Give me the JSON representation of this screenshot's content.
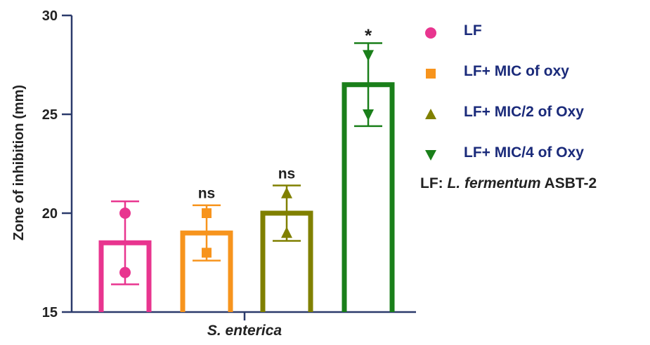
{
  "chart_data": {
    "type": "bar",
    "ylabel": "Zone of inhibition (mm)",
    "xlabel": "S. enterica",
    "ylim": [
      15,
      30
    ],
    "yticks": [
      15,
      20,
      25,
      30
    ],
    "series": [
      {
        "name": "LF",
        "color": "#e8358f",
        "marker": "circle",
        "mean": 18.5,
        "points": [
          20,
          17
        ],
        "error": [
          16.4,
          20.6
        ],
        "annotation": ""
      },
      {
        "name": "LF+ MIC of oxy",
        "color": "#f7941d",
        "marker": "square",
        "mean": 19.0,
        "points": [
          20,
          18
        ],
        "error": [
          17.6,
          20.4
        ],
        "annotation": "ns"
      },
      {
        "name": "LF+ MIC/2 of Oxy",
        "color": "#808000",
        "marker": "triangle-up",
        "mean": 20.0,
        "points": [
          21,
          19
        ],
        "error": [
          18.6,
          21.4
        ],
        "annotation": "ns"
      },
      {
        "name": "LF+ MIC/4 of Oxy",
        "color": "#1a7f1a",
        "marker": "triangle-down",
        "mean": 26.5,
        "points": [
          28,
          25
        ],
        "error": [
          24.4,
          28.6
        ],
        "annotation": "*"
      }
    ]
  },
  "footnote": {
    "prefix": "LF: ",
    "species": "L. fermentum",
    "strain": " ASBT-2"
  },
  "colors": {
    "axis": "#2b3a6b",
    "legend_text": "#1a2a7a"
  }
}
